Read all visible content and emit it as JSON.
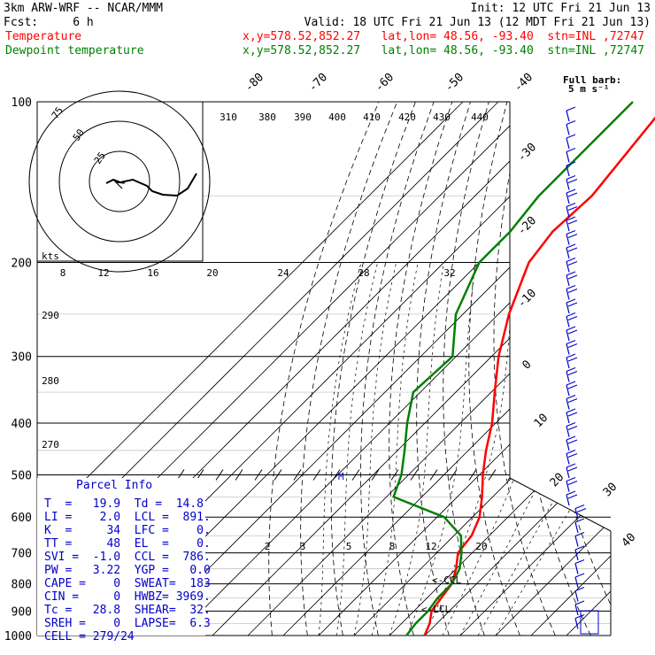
{
  "header": {
    "model": "3km ARW-WRF -- NCAR/MMM",
    "init": "Init: 12 UTC Fri 21 Jun 13",
    "fcst": "Fcst:     6 h",
    "valid": "Valid: 18 UTC Fri 21 Jun 13 (12 MDT Fri 21 Jun 13)",
    "temp_label": "Temperature",
    "dew_label": "Dewpoint temperature",
    "temp_loc": "x,y=578.52,852.27   lat,lon= 48.56, -93.40  stn=INL ,72747",
    "dew_loc": "x,y=578.52,852.27   lat,lon= 48.56, -93.40  stn=INL ,72747"
  },
  "colors": {
    "temperature": "#ff0000",
    "dewpoint": "#008000",
    "text_blue": "#0000cc",
    "grid": "#000000",
    "barb": "#0000cc"
  },
  "chart_data": {
    "type": "line",
    "title": "",
    "pressure_levels": [
      100,
      200,
      300,
      400,
      500,
      600,
      700,
      800,
      900,
      1000
    ],
    "pressure_labels": [
      "100",
      "200",
      "300",
      "400",
      "500",
      "600",
      "700",
      "800",
      "900",
      "1000"
    ],
    "isotherm_labels": [
      "-80",
      "-70",
      "-60",
      "-50",
      "-40",
      "-30",
      "-20",
      "-10",
      "0",
      "10",
      "20",
      "30",
      "40"
    ],
    "theta_labels": [
      "310",
      "380",
      "390",
      "400",
      "410",
      "420",
      "430",
      "440"
    ],
    "mixing_ratio_labels": [
      "8",
      "12",
      "16",
      "20",
      "24",
      "28",
      "32"
    ],
    "mixing_ratio_low_labels": [
      "2",
      "3",
      "5",
      "8",
      "12",
      "20"
    ],
    "dry_adiabat_labels": [
      "290",
      "280",
      "270"
    ],
    "series": [
      {
        "name": "Temperature",
        "points": [
          [
            100,
            -62
          ],
          [
            150,
            -57
          ],
          [
            175,
            -58
          ],
          [
            200,
            -56
          ],
          [
            250,
            -47
          ],
          [
            300,
            -38
          ],
          [
            350,
            -29
          ],
          [
            400,
            -21
          ],
          [
            450,
            -15
          ],
          [
            500,
            -9
          ],
          [
            550,
            -3
          ],
          [
            600,
            2
          ],
          [
            650,
            5
          ],
          [
            700,
            6
          ],
          [
            750,
            10
          ],
          [
            800,
            13
          ],
          [
            850,
            14
          ],
          [
            900,
            15
          ],
          [
            950,
            18
          ],
          [
            1000,
            19.9
          ]
        ]
      },
      {
        "name": "Dewpoint temperature",
        "points": [
          [
            100,
            -72
          ],
          [
            150,
            -72
          ],
          [
            175,
            -70
          ],
          [
            200,
            -70
          ],
          [
            250,
            -62
          ],
          [
            300,
            -51
          ],
          [
            350,
            -52
          ],
          [
            400,
            -45
          ],
          [
            450,
            -38
          ],
          [
            500,
            -32
          ],
          [
            550,
            -28
          ],
          [
            600,
            -8
          ],
          [
            650,
            2
          ],
          [
            700,
            7
          ],
          [
            750,
            11
          ],
          [
            800,
            13
          ],
          [
            850,
            13
          ],
          [
            900,
            14
          ],
          [
            950,
            14
          ],
          [
            1000,
            14.8
          ]
        ]
      }
    ],
    "wind_barbs_label": "Full barb:",
    "wind_barbs_unit": "5 m s⁻¹",
    "hodograph": {
      "ring_labels": [
        "25",
        "50",
        "75"
      ],
      "units": "kts"
    }
  },
  "parcel": {
    "title": "Parcel Info",
    "rows": [
      "T  =   19.9  Td =  14.8",
      "LI =    2.0  LCL =  891.",
      "K  =     34  LFC =    0.",
      "TT =     48  EL  =    0.",
      "SVI =  -1.0  CCL =  786.",
      "PW =   3.22  YGP =   0.0",
      "CAPE =    0  SWEAT=  183",
      "CIN =     0  HWBZ= 3969.",
      "Tc =   28.8  SHEAR=  32.",
      "SREH =    0  LAPSE=  6.3",
      "CELL = 279/24"
    ]
  },
  "annotations": {
    "ccl": "<-CCL",
    "lcl": "<-LCL",
    "m_marker": "M"
  }
}
